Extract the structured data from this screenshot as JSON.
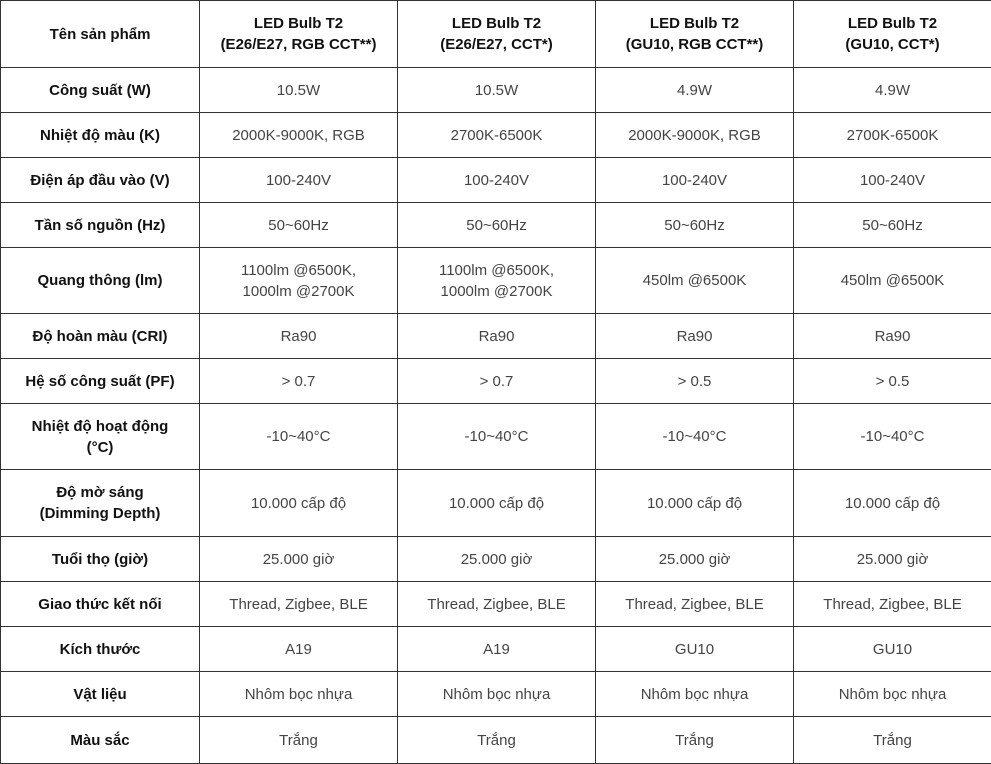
{
  "header": {
    "label": "Tên sản phẩm",
    "products": [
      [
        "LED Bulb T2",
        "(E26/E27, RGB CCT**)"
      ],
      [
        "LED Bulb T2",
        "(E26/E27, CCT*)"
      ],
      [
        "LED Bulb T2",
        "(GU10, RGB CCT**)"
      ],
      [
        "LED Bulb T2",
        "(GU10, CCT*)"
      ]
    ]
  },
  "rows": [
    {
      "label": [
        "Công suất (W)"
      ],
      "values": [
        [
          "10.5W"
        ],
        [
          "10.5W"
        ],
        [
          "4.9W"
        ],
        [
          "4.9W"
        ]
      ]
    },
    {
      "label": [
        "Nhiệt độ màu (K)"
      ],
      "values": [
        [
          "2000K-9000K, RGB"
        ],
        [
          "2700K-6500K"
        ],
        [
          "2000K-9000K, RGB"
        ],
        [
          "2700K-6500K"
        ]
      ]
    },
    {
      "label": [
        "Điện áp đầu vào (V)"
      ],
      "values": [
        [
          "100-240V"
        ],
        [
          "100-240V"
        ],
        [
          "100-240V"
        ],
        [
          "100-240V"
        ]
      ]
    },
    {
      "label": [
        "Tần số nguồn (Hz)"
      ],
      "values": [
        [
          "50~60Hz"
        ],
        [
          "50~60Hz"
        ],
        [
          "50~60Hz"
        ],
        [
          "50~60Hz"
        ]
      ]
    },
    {
      "label": [
        "Quang thông (lm)"
      ],
      "values": [
        [
          "1100lm @6500K,",
          "1000lm @2700K"
        ],
        [
          "1100lm @6500K,",
          "1000lm @2700K"
        ],
        [
          "450lm @6500K"
        ],
        [
          "450lm @6500K"
        ]
      ]
    },
    {
      "label": [
        "Độ hoàn màu (CRI)"
      ],
      "values": [
        [
          "Ra90"
        ],
        [
          "Ra90"
        ],
        [
          "Ra90"
        ],
        [
          "Ra90"
        ]
      ]
    },
    {
      "label": [
        "Hệ số công suất (PF)"
      ],
      "values": [
        [
          "> 0.7"
        ],
        [
          "> 0.7"
        ],
        [
          "> 0.5"
        ],
        [
          "> 0.5"
        ]
      ]
    },
    {
      "label": [
        "Nhiệt độ hoạt động",
        "(°C)"
      ],
      "values": [
        [
          "-10~40°C"
        ],
        [
          "-10~40°C"
        ],
        [
          "-10~40°C"
        ],
        [
          "-10~40°C"
        ]
      ]
    },
    {
      "label": [
        "Độ mờ sáng",
        "(Dimming Depth)"
      ],
      "values": [
        [
          "10.000 cấp độ"
        ],
        [
          "10.000 cấp độ"
        ],
        [
          "10.000 cấp độ"
        ],
        [
          "10.000 cấp độ"
        ]
      ]
    },
    {
      "label": [
        "Tuổi thọ (giờ)"
      ],
      "values": [
        [
          "25.000 giờ"
        ],
        [
          "25.000 giờ"
        ],
        [
          "25.000 giờ"
        ],
        [
          "25.000 giờ"
        ]
      ]
    },
    {
      "label": [
        "Giao thức kết nối"
      ],
      "values": [
        [
          "Thread, Zigbee, BLE"
        ],
        [
          "Thread, Zigbee, BLE"
        ],
        [
          "Thread, Zigbee, BLE"
        ],
        [
          "Thread, Zigbee, BLE"
        ]
      ]
    },
    {
      "label": [
        "Kích thước"
      ],
      "values": [
        [
          "A19"
        ],
        [
          "A19"
        ],
        [
          "GU10"
        ],
        [
          "GU10"
        ]
      ]
    },
    {
      "label": [
        "Vật liệu"
      ],
      "values": [
        [
          "Nhôm bọc nhựa"
        ],
        [
          "Nhôm bọc nhựa"
        ],
        [
          "Nhôm bọc nhựa"
        ],
        [
          "Nhôm bọc nhựa"
        ]
      ]
    },
    {
      "label": [
        "Màu sắc"
      ],
      "values": [
        [
          "Trắng"
        ],
        [
          "Trắng"
        ],
        [
          "Trắng"
        ],
        [
          "Trắng"
        ]
      ]
    }
  ]
}
